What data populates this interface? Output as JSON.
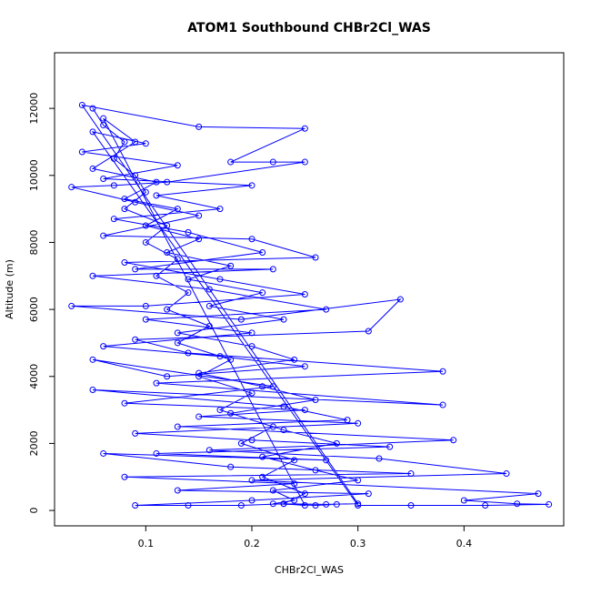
{
  "chart_data": {
    "type": "line",
    "title": "ATOM1 Southbound CHBr2Cl_WAS",
    "x_label": "CHBr2Cl_WAS",
    "y_label": "Altitude (m)",
    "color": "#0000ff",
    "x": [
      0.05,
      0.06,
      0.08,
      0.07,
      0.09,
      0.1,
      0.08,
      0.12,
      0.1,
      0.13,
      0.11,
      0.14,
      0.12,
      0.16,
      0.13,
      0.18,
      0.15,
      0.2,
      0.17,
      0.22,
      0.19,
      0.24,
      0.21,
      0.25,
      0.23,
      0.27,
      0.3,
      0.04,
      0.15,
      0.25,
      0.18,
      0.22,
      0.25,
      0.12,
      0.07,
      0.03,
      0.09,
      0.15,
      0.06,
      0.2,
      0.26,
      0.08,
      0.17,
      0.25,
      0.1,
      0.03,
      0.19,
      0.34,
      0.31,
      0.09,
      0.14,
      0.38,
      0.11,
      0.38,
      0.05,
      0.23,
      0.29,
      0.13,
      0.39,
      0.16,
      0.32,
      0.44,
      0.2,
      0.47,
      0.4,
      0.45,
      0.48,
      0.42,
      0.35,
      0.3,
      0.05,
      0.1,
      0.04,
      0.13,
      0.06,
      0.2,
      0.11,
      0.17,
      0.07,
      0.14,
      0.21,
      0.09,
      0.22,
      0.05,
      0.16,
      0.27,
      0.1,
      0.2,
      0.06,
      0.17,
      0.25,
      0.12,
      0.05,
      0.22,
      0.08,
      0.25,
      0.15,
      0.3,
      0.09,
      0.2,
      0.33,
      0.11,
      0.27,
      0.06,
      0.18,
      0.35,
      0.08,
      0.24,
      0.13,
      0.31,
      0.2,
      0.09,
      0.14,
      0.19,
      0.23,
      0.25,
      0.06,
      0.09,
      0.05,
      0.11,
      0.08,
      0.13,
      0.1,
      0.15,
      0.12,
      0.18,
      0.14,
      0.21,
      0.16,
      0.23,
      0.13,
      0.2,
      0.24,
      0.15,
      0.21,
      0.26,
      0.18,
      0.23,
      0.28,
      0.21,
      0.26,
      0.3,
      0.22,
      0.24,
      0.22,
      0.26,
      0.28
    ],
    "values": [
      12000,
      11500,
      11000,
      10500,
      10000,
      9500,
      9000,
      8500,
      8000,
      7500,
      7000,
      6500,
      6000,
      5500,
      5000,
      4500,
      4000,
      3500,
      3000,
      2500,
      2000,
      1500,
      1000,
      500,
      200,
      180,
      200,
      12100,
      11450,
      11400,
      10400,
      10400,
      10400,
      9800,
      9700,
      9650,
      9200,
      8800,
      8200,
      8100,
      7550,
      7400,
      6900,
      6450,
      6100,
      6100,
      5700,
      6300,
      5350,
      5100,
      4700,
      4150,
      3800,
      3150,
      3600,
      3100,
      2700,
      2500,
      2100,
      1800,
      1550,
      1100,
      900,
      500,
      300,
      200,
      180,
      150,
      150,
      150,
      11300,
      10950,
      10700,
      10300,
      9900,
      9700,
      9400,
      9000,
      8700,
      8300,
      7700,
      7200,
      7200,
      7000,
      6600,
      6000,
      5700,
      5300,
      4900,
      4600,
      4300,
      4000,
      4500,
      3700,
      3200,
      3000,
      2800,
      2600,
      2300,
      2100,
      1900,
      1700,
      1500,
      1700,
      1300,
      1100,
      1000,
      800,
      600,
      500,
      300,
      150,
      150,
      150,
      200,
      150,
      11700,
      11000,
      10200,
      9800,
      9300,
      9000,
      8500,
      8100,
      7700,
      7300,
      6900,
      6500,
      6100,
      5700,
      5300,
      4900,
      4500,
      4100,
      3700,
      3300,
      2900,
      2400,
      2000,
      1600,
      1200,
      900,
      600,
      300,
      200,
      150,
      180
    ],
    "xlim": [
      0.014,
      0.494
    ],
    "ylim": [
      -460,
      13660
    ],
    "xticks": [
      0.1,
      0.2,
      0.3,
      0.4
    ],
    "yticks": [
      0,
      2000,
      4000,
      6000,
      8000,
      10000,
      12000
    ]
  }
}
